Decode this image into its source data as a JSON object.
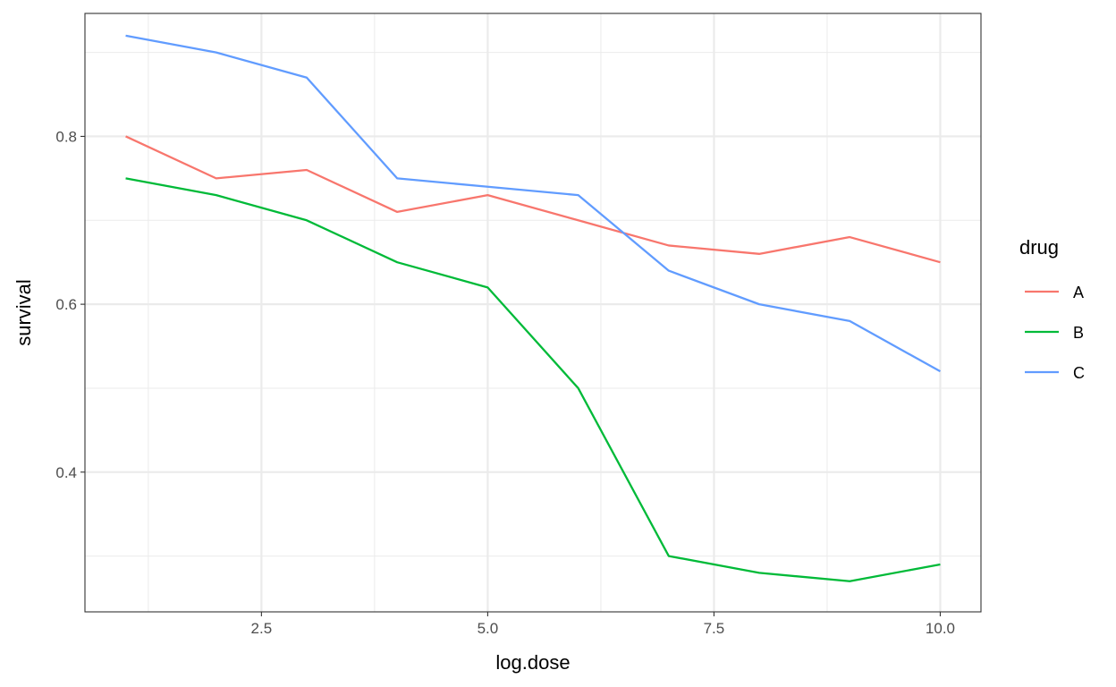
{
  "chart_data": {
    "type": "line",
    "title": "",
    "xlabel": "log.dose",
    "ylabel": "survival",
    "xlim": [
      0.55,
      10.45
    ],
    "ylim": [
      0.2335,
      0.9465
    ],
    "x_ticks": [
      2.5,
      5.0,
      7.5,
      10.0
    ],
    "x_tick_labels": [
      "2.5",
      "5.0",
      "7.5",
      "10.0"
    ],
    "x_minor_ticks": [
      1.25,
      3.75,
      6.25,
      8.75
    ],
    "y_ticks": [
      0.4,
      0.6,
      0.8
    ],
    "y_tick_labels": [
      "0.4",
      "0.6",
      "0.8"
    ],
    "y_minor_ticks": [
      0.3,
      0.5,
      0.7,
      0.9
    ],
    "grid": true,
    "legend": {
      "title": "drug",
      "position": "right"
    },
    "x": [
      1,
      2,
      3,
      4,
      5,
      6,
      7,
      8,
      9,
      10
    ],
    "series": [
      {
        "name": "A",
        "color": "#F8766D",
        "values": [
          0.8,
          0.75,
          0.76,
          0.71,
          0.73,
          0.7,
          0.67,
          0.66,
          0.68,
          0.65
        ]
      },
      {
        "name": "B",
        "color": "#00BA38",
        "values": [
          0.75,
          0.73,
          0.7,
          0.65,
          0.62,
          0.5,
          0.3,
          0.28,
          0.27,
          0.29
        ]
      },
      {
        "name": "C",
        "color": "#619CFF",
        "values": [
          0.92,
          0.9,
          0.87,
          0.75,
          0.74,
          0.73,
          0.64,
          0.6,
          0.58,
          0.52
        ]
      }
    ]
  }
}
